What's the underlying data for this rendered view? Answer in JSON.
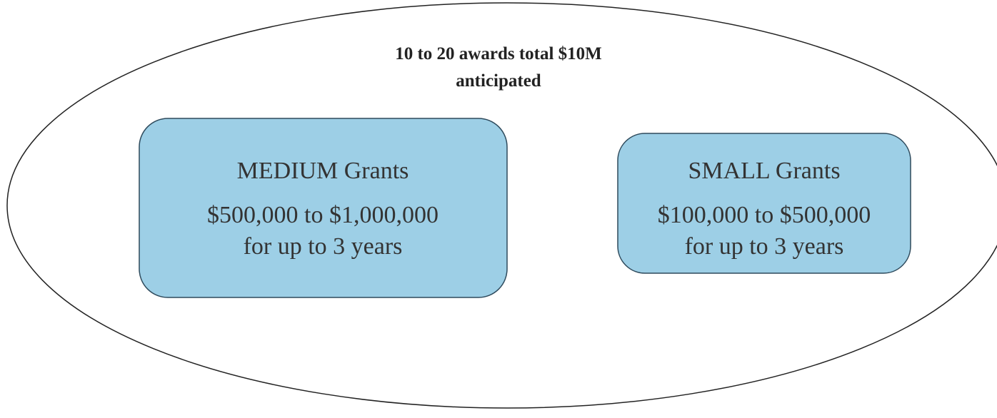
{
  "heading": [
    "10 to 20 awards total $10M",
    "anticipated"
  ],
  "boxes": [
    {
      "title": "MEDIUM Grants",
      "lines": [
        "$500,000 to $1,000,000",
        "for up to 3 years"
      ]
    },
    {
      "title": "SMALL Grants",
      "lines": [
        "$100,000 to $500,000",
        "for up to 3 years"
      ]
    }
  ]
}
